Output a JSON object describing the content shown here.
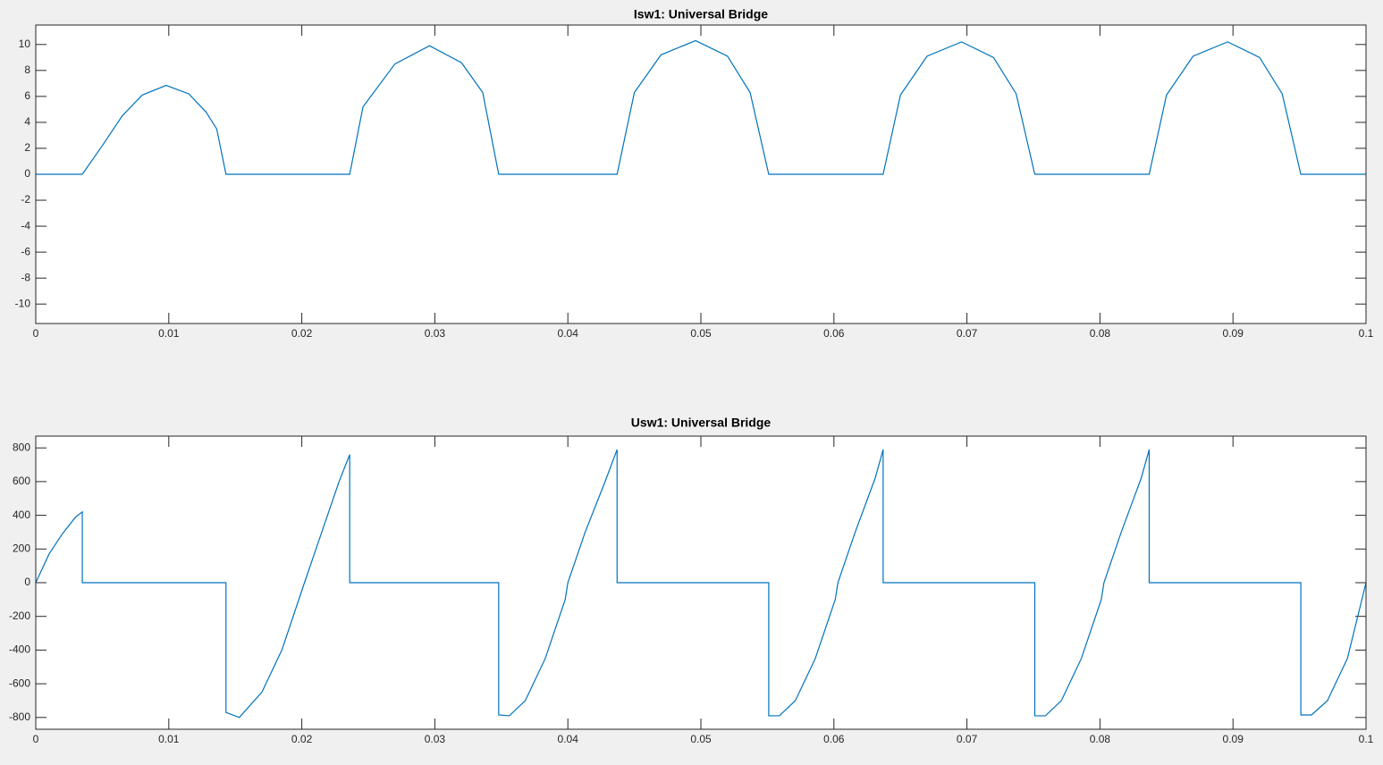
{
  "chart_data": [
    {
      "type": "line",
      "title": "Isw1: Universal Bridge",
      "xlim": [
        0,
        0.1
      ],
      "xticks": [
        0,
        0.01,
        0.02,
        0.03,
        0.04,
        0.05,
        0.06,
        0.07,
        0.08,
        0.09,
        0.1
      ],
      "ylim": [
        -11.5,
        11.5
      ],
      "yticks": [
        -10,
        -8,
        -6,
        -4,
        -2,
        0,
        2,
        4,
        6,
        8,
        10
      ],
      "grid": false,
      "series": [
        {
          "color": "#0072bd",
          "x": [
            0,
            0.0035,
            0.005,
            0.0065,
            0.008,
            0.0098,
            0.0115,
            0.0128,
            0.0136,
            0.0143,
            0.0236,
            0.0246,
            0.027,
            0.0296,
            0.032,
            0.0336,
            0.0348,
            0.0437,
            0.045,
            0.047,
            0.0496,
            0.052,
            0.0537,
            0.0551,
            0.0637,
            0.065,
            0.067,
            0.0696,
            0.072,
            0.0737,
            0.0751,
            0.0837,
            0.085,
            0.087,
            0.0896,
            0.092,
            0.0937,
            0.0951,
            0.1
          ],
          "values": [
            0,
            0,
            2.2,
            4.5,
            6.1,
            6.85,
            6.2,
            4.8,
            3.5,
            0,
            0,
            5.2,
            8.5,
            9.9,
            8.6,
            6.3,
            0,
            0,
            6.3,
            9.2,
            10.3,
            9.1,
            6.3,
            0,
            0,
            6.1,
            9.1,
            10.2,
            9.0,
            6.2,
            0,
            0,
            6.1,
            9.1,
            10.2,
            9.0,
            6.2,
            0,
            0
          ]
        }
      ]
    },
    {
      "type": "line",
      "title": "Usw1: Universal Bridge",
      "xlim": [
        0,
        0.1
      ],
      "xticks": [
        0,
        0.01,
        0.02,
        0.03,
        0.04,
        0.05,
        0.06,
        0.07,
        0.08,
        0.09,
        0.1
      ],
      "ylim": [
        -870,
        870
      ],
      "yticks": [
        -800,
        -600,
        -400,
        -200,
        0,
        200,
        400,
        600,
        800
      ],
      "grid": false,
      "series": [
        {
          "color": "#0072bd",
          "x": [
            0,
            0.001,
            0.002,
            0.003,
            0.0035,
            0.0035,
            0.0143,
            0.0143,
            0.0153,
            0.017,
            0.0185,
            0.0202,
            0.0215,
            0.0228,
            0.0236,
            0.0236,
            0.0348,
            0.0348,
            0.0356,
            0.0368,
            0.0383,
            0.0398,
            0.04,
            0.0413,
            0.0428,
            0.0437,
            0.0437,
            0.0551,
            0.0551,
            0.0559,
            0.0571,
            0.0586,
            0.0601,
            0.0603,
            0.0616,
            0.0631,
            0.0637,
            0.0637,
            0.0751,
            0.0751,
            0.0759,
            0.0771,
            0.0786,
            0.0801,
            0.0803,
            0.0816,
            0.0831,
            0.0837,
            0.0837,
            0.0951,
            0.0951,
            0.0959,
            0.0971,
            0.0986,
            0.1
          ],
          "values": [
            0,
            170,
            290,
            390,
            420,
            0,
            0,
            -770,
            -800,
            -650,
            -400,
            0,
            300,
            600,
            760,
            0,
            0,
            -785,
            -790,
            -700,
            -450,
            -100,
            0,
            300,
            600,
            790,
            0,
            0,
            -790,
            -790,
            -700,
            -450,
            -100,
            0,
            300,
            620,
            790,
            0,
            0,
            -790,
            -790,
            -700,
            -450,
            -100,
            0,
            300,
            620,
            790,
            0,
            0,
            -785,
            -785,
            -700,
            -450,
            0
          ]
        }
      ]
    }
  ]
}
